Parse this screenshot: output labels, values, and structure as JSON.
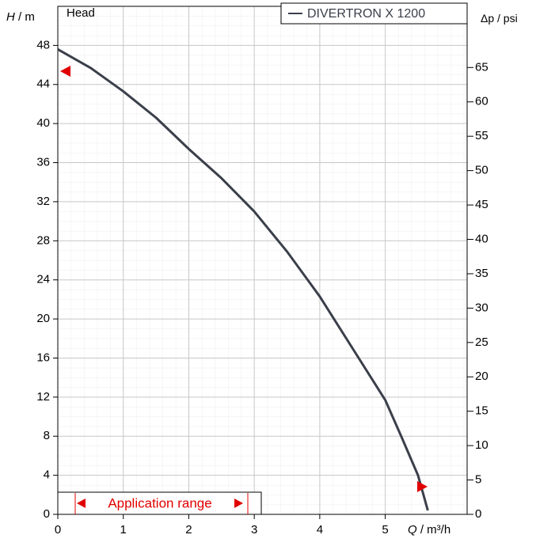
{
  "chart_data": {
    "type": "line",
    "title": "Head",
    "x_label": {
      "symbol": "Q",
      "unit": "/ m³/h"
    },
    "y_label": {
      "symbol": "H",
      "unit": "/ m"
    },
    "y2_label": {
      "symbol": "Δp",
      "unit": "/ psi"
    },
    "x": [
      0,
      0.5,
      1,
      1.5,
      2,
      2.5,
      3,
      3.5,
      4,
      4.5,
      5,
      5.25,
      5.5,
      5.65
    ],
    "series": [
      {
        "name": "DIVERTRON X 1200",
        "color": "#3a3f4a",
        "values": [
          47.6,
          45.7,
          43.3,
          40.6,
          37.4,
          34.4,
          31.0,
          26.9,
          22.3,
          17.0,
          11.7,
          7.9,
          4.0,
          0.4
        ]
      }
    ],
    "xlim": [
      0,
      6.25
    ],
    "xticks": [
      0,
      1,
      2,
      3,
      4,
      5
    ],
    "ylim": [
      0,
      52
    ],
    "yticks": [
      0,
      4,
      8,
      12,
      16,
      20,
      24,
      28,
      32,
      36,
      40,
      44,
      48
    ],
    "y2lim": [
      0,
      73.9
    ],
    "y2ticks": [
      0,
      5,
      10,
      15,
      20,
      25,
      30,
      35,
      40,
      45,
      50,
      55,
      60,
      65
    ],
    "grid": true,
    "legend": "top-right",
    "annotation": "Application range"
  }
}
